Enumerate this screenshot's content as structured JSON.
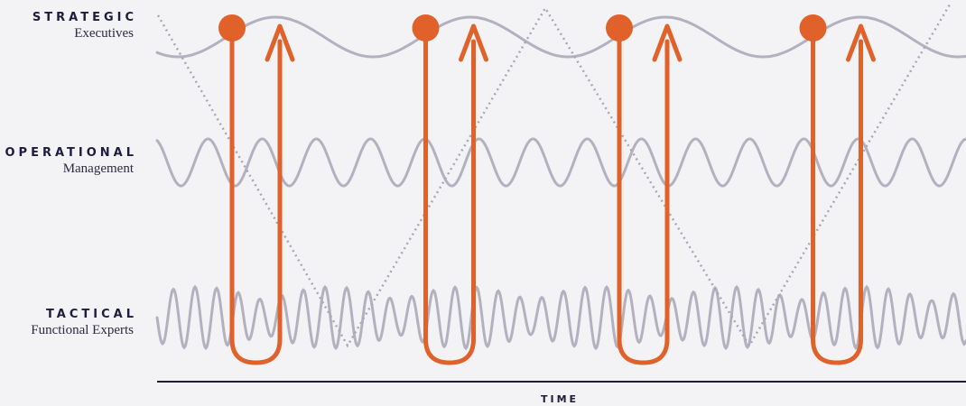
{
  "levels": [
    {
      "name": "STRATEGIC",
      "sub": "Executives"
    },
    {
      "name": "OPERATIONAL",
      "sub": "Management"
    },
    {
      "name": "TACTICAL",
      "sub": "Functional Experts"
    }
  ],
  "axis": {
    "label": "TIME"
  },
  "colors": {
    "loop": "#e0622a",
    "wave": "#b3b1c0",
    "dotted": "#a9a7b7",
    "axis": "#1e1c3c",
    "text": "#1e1c3c"
  },
  "loop_count": 4
}
